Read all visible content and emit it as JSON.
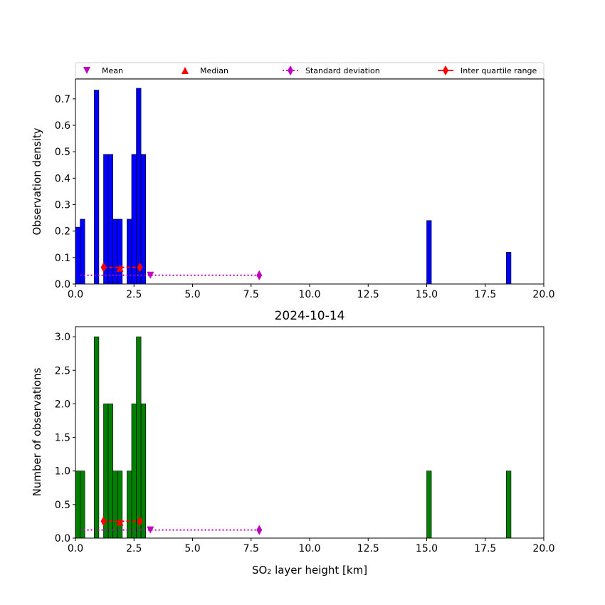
{
  "legend": {
    "entries": [
      {
        "label": "Mean",
        "marker": "triangle-down",
        "color": "#bf00bf"
      },
      {
        "label": "Median",
        "marker": "triangle-up",
        "color": "#ff0000"
      },
      {
        "label": "Standard deviation",
        "marker": "diamond-dotted-line",
        "color": "#bf00bf"
      },
      {
        "label": "Inter quartile range",
        "marker": "diamond-solid-line",
        "color": "#ff0000"
      }
    ]
  },
  "chart_data": [
    {
      "type": "bar",
      "title": "",
      "xlabel": "",
      "ylabel": "Observation density",
      "xlim": [
        0,
        20
      ],
      "ylim": [
        0,
        0.775
      ],
      "xticks": [
        "0.0",
        "2.5",
        "5.0",
        "7.5",
        "10.0",
        "12.5",
        "15.0",
        "17.5",
        "20.0"
      ],
      "yticks": [
        "0.0",
        "0.1",
        "0.2",
        "0.3",
        "0.4",
        "0.5",
        "0.6",
        "0.7"
      ],
      "bar_color": "#0000ff",
      "bin_width": 0.2,
      "bins": [
        {
          "x": 0.0,
          "value": 0.215
        },
        {
          "x": 0.2,
          "value": 0.245
        },
        {
          "x": 0.8,
          "value": 0.733
        },
        {
          "x": 1.2,
          "value": 0.49
        },
        {
          "x": 1.4,
          "value": 0.49
        },
        {
          "x": 1.6,
          "value": 0.245
        },
        {
          "x": 1.8,
          "value": 0.245
        },
        {
          "x": 2.2,
          "value": 0.245
        },
        {
          "x": 2.4,
          "value": 0.49
        },
        {
          "x": 2.6,
          "value": 0.74
        },
        {
          "x": 2.8,
          "value": 0.49
        },
        {
          "x": 15.0,
          "value": 0.24
        },
        {
          "x": 18.4,
          "value": 0.12
        }
      ],
      "stats": {
        "mean": {
          "x": 3.2,
          "y": 0.033
        },
        "median": {
          "x": 1.9,
          "y": 0.06
        },
        "std_line": {
          "x": [
            0.2,
            7.85
          ],
          "y": 0.033
        },
        "iqr": {
          "x": [
            1.2,
            2.75
          ],
          "y": 0.063
        }
      }
    },
    {
      "type": "bar",
      "title": "2024-10-14",
      "xlabel": "SO₂ layer height [km]",
      "ylabel": "Number of observations",
      "xlim": [
        0,
        20
      ],
      "ylim": [
        0,
        3.15
      ],
      "xticks": [
        "0.0",
        "2.5",
        "5.0",
        "7.5",
        "10.0",
        "12.5",
        "15.0",
        "17.5",
        "20.0"
      ],
      "yticks": [
        "0.0",
        "0.5",
        "1.0",
        "1.5",
        "2.0",
        "2.5",
        "3.0"
      ],
      "bar_color": "#008000",
      "bin_width": 0.2,
      "bins": [
        {
          "x": 0.0,
          "value": 1
        },
        {
          "x": 0.2,
          "value": 1
        },
        {
          "x": 0.8,
          "value": 3
        },
        {
          "x": 1.2,
          "value": 2
        },
        {
          "x": 1.4,
          "value": 2
        },
        {
          "x": 1.6,
          "value": 1
        },
        {
          "x": 1.8,
          "value": 1
        },
        {
          "x": 2.2,
          "value": 1
        },
        {
          "x": 2.4,
          "value": 2
        },
        {
          "x": 2.6,
          "value": 3
        },
        {
          "x": 2.8,
          "value": 2
        },
        {
          "x": 15.0,
          "value": 1
        },
        {
          "x": 18.4,
          "value": 1
        }
      ],
      "stats": {
        "mean": {
          "x": 3.2,
          "y": 0.12
        },
        "median": {
          "x": 1.9,
          "y": 0.24
        },
        "std_line": {
          "x": [
            0.2,
            7.85
          ],
          "y": 0.12
        },
        "iqr": {
          "x": [
            1.2,
            2.75
          ],
          "y": 0.25
        }
      }
    }
  ]
}
